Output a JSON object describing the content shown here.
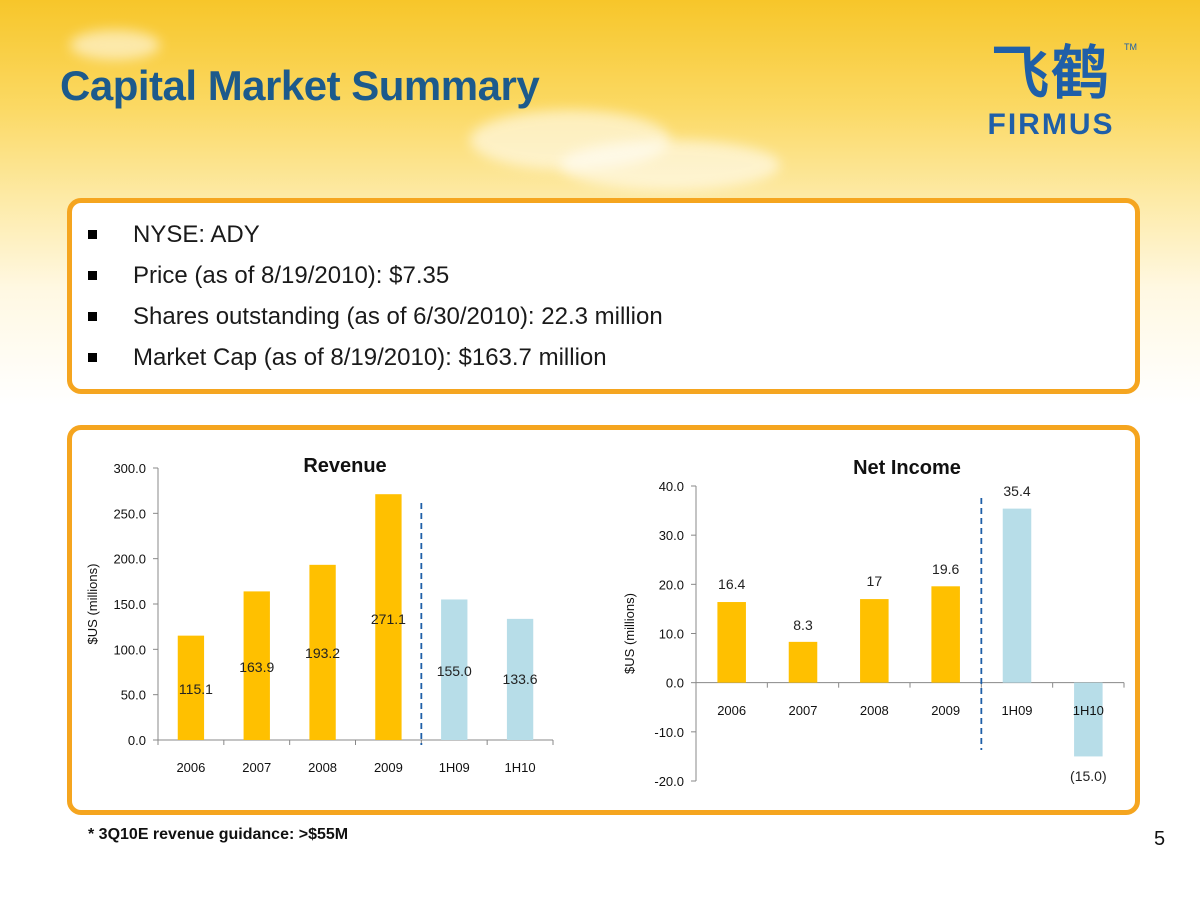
{
  "slide": {
    "title": "Capital Market Summary",
    "logo_cn": "飞鹤",
    "logo_en": "FIRMUS",
    "logo_tm": "TM",
    "bullets": [
      "NYSE: ADY",
      "Price (as of 8/19/2010): $7.35",
      "Shares outstanding (as of 6/30/2010): 22.3 million",
      "Market Cap (as of 8/19/2010): $163.7 million"
    ],
    "footnote": "* 3Q10E revenue guidance: >$55M",
    "page_number": "5"
  },
  "colors": {
    "title": "#1c5a8c",
    "border": "#f5a51f",
    "bar_actual": "#ffc000",
    "bar_half": "#b7dde8",
    "divider": "#1f5fa8"
  },
  "chart_data": [
    {
      "type": "bar",
      "title": "Revenue",
      "ylabel": "$US (millions)",
      "categories": [
        "2006",
        "2007",
        "2008",
        "2009",
        "1H09",
        "1H10"
      ],
      "values": [
        115.1,
        163.9,
        193.2,
        271.1,
        155.0,
        133.6
      ],
      "labels": [
        "115.1",
        "163.9",
        "193.2",
        "271.1",
        "155.0",
        "133.6"
      ],
      "ylim": [
        0,
        300
      ],
      "yticks": [
        "0.0",
        "50.0",
        "100.0",
        "150.0",
        "200.0",
        "250.0",
        "300.0"
      ],
      "ytick_values": [
        0,
        50,
        100,
        150,
        200,
        250,
        300
      ],
      "half_year_categories": [
        "1H09",
        "1H10"
      ],
      "divider_after": "2009"
    },
    {
      "type": "bar",
      "title": "Net Income",
      "ylabel": "$US (millions)",
      "categories": [
        "2006",
        "2007",
        "2008",
        "2009",
        "1H09",
        "1H10"
      ],
      "values": [
        16.4,
        8.3,
        17,
        19.6,
        35.4,
        -15.0
      ],
      "labels": [
        "16.4",
        "8.3",
        "17",
        "19.6",
        "35.4",
        "(15.0)"
      ],
      "ylim": [
        -20,
        40
      ],
      "yticks": [
        "-20.0",
        "-10.0",
        "0.0",
        "10.0",
        "20.0",
        "30.0",
        "40.0"
      ],
      "ytick_values": [
        -20,
        -10,
        0,
        10,
        20,
        30,
        40
      ],
      "half_year_categories": [
        "1H09",
        "1H10"
      ],
      "divider_after": "2009"
    }
  ]
}
